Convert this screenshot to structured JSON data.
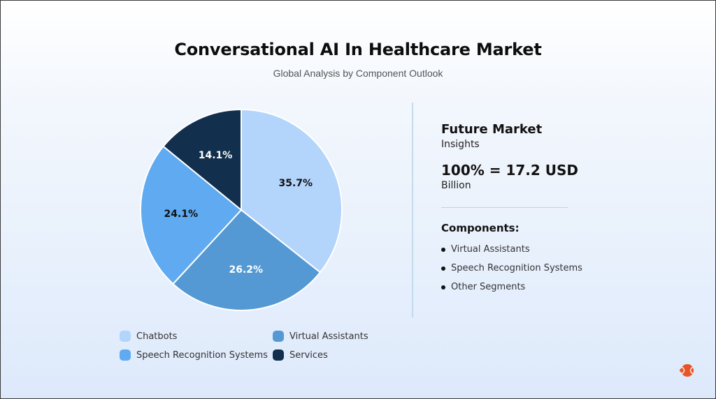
{
  "header": {
    "title": "Conversational AI In Healthcare Market",
    "subtitle": "Global Analysis by Component Outlook"
  },
  "chart_data": {
    "type": "pie",
    "title": "Conversational AI In Healthcare Market",
    "subtitle": "Global Analysis by Component Outlook",
    "categories": [
      "Chatbots",
      "Virtual Assistants",
      "Speech Recognition Systems",
      "Services"
    ],
    "values": [
      35.7,
      26.2,
      24.1,
      14.1
    ],
    "labels": [
      "35.7%",
      "26.2%",
      "24.1%",
      "14.1%"
    ],
    "colors": [
      "#b3d4fb",
      "#5499d3",
      "#5faaf0",
      "#132f4e"
    ],
    "label_colors": [
      "#111111",
      "#ffffff",
      "#111111",
      "#ffffff"
    ],
    "start_angle_deg": 0,
    "direction": "clockwise",
    "legend_position": "bottom",
    "total": "100% = 17.2 USD Billion"
  },
  "legend": {
    "items": [
      {
        "label": "Chatbots",
        "color": "#b3d4fb"
      },
      {
        "label": "Virtual Assistants",
        "color": "#5499d3"
      },
      {
        "label": "Speech Recognition Systems",
        "color": "#5faaf0"
      },
      {
        "label": "Services",
        "color": "#132f4e"
      }
    ]
  },
  "insights": {
    "title": "Future Market",
    "subtitle": "Insights",
    "total_value": "100% = 17.2 USD",
    "total_unit": "Billion",
    "components_title": "Components:",
    "components": [
      "Virtual Assistants",
      "Speech Recognition Systems",
      "Other Segments"
    ]
  },
  "branding": {
    "logo_icon": "brand-logo-icon",
    "logo_color": "#e8542a"
  }
}
